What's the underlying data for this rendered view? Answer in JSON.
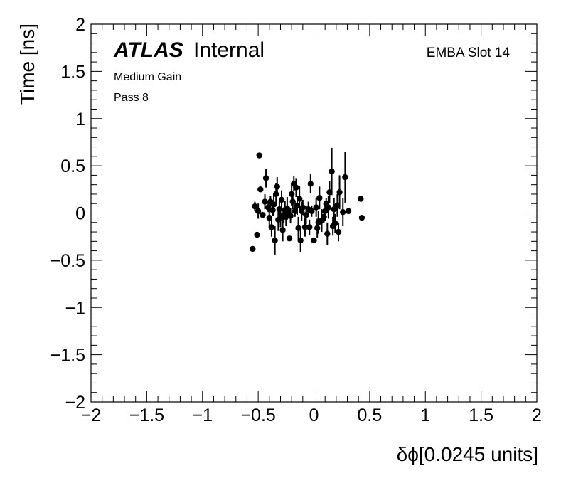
{
  "header": {
    "atlas_label": "ATLAS",
    "internal_label": "Internal",
    "region_label": "EMBA Slot 14",
    "gain_label": "Medium Gain",
    "pass_label": "Pass 8"
  },
  "chart_data": {
    "type": "scatter",
    "title": "",
    "xlabel": "δϕ[0.0245 units]",
    "ylabel": "Time [ns]",
    "xlim": [
      -2,
      2
    ],
    "ylim": [
      -2,
      2
    ],
    "x_ticks": [
      -2,
      -1.5,
      -1,
      -0.5,
      0,
      0.5,
      1,
      1.5,
      2
    ],
    "y_ticks": [
      -2,
      -1.5,
      -1,
      -0.5,
      0,
      0.5,
      1,
      1.5,
      2
    ],
    "x_tick_labels": [
      "−2",
      "−1.5",
      "−1",
      "−0.5",
      "0",
      "0.5",
      "1",
      "1.5",
      "2"
    ],
    "y_tick_labels": [
      "−2",
      "−1.5",
      "−1",
      "−0.5",
      "0",
      "0.5",
      "1",
      "1.5",
      "2"
    ],
    "grid": false,
    "marker_color": "#000000",
    "points": [
      {
        "x": -0.55,
        "y": -0.38,
        "err": 0.0
      },
      {
        "x": -0.53,
        "y": 0.07,
        "err": 0.05
      },
      {
        "x": -0.51,
        "y": -0.23,
        "err": 0.0
      },
      {
        "x": -0.5,
        "y": 0.02,
        "err": 0.08
      },
      {
        "x": -0.49,
        "y": 0.61,
        "err": 0.0
      },
      {
        "x": -0.48,
        "y": 0.25,
        "err": 0.0
      },
      {
        "x": -0.46,
        "y": -0.02,
        "err": 0.0
      },
      {
        "x": -0.44,
        "y": 0.12,
        "err": 0.08
      },
      {
        "x": -0.43,
        "y": 0.37,
        "err": 0.1
      },
      {
        "x": -0.41,
        "y": 0.06,
        "err": 0.05
      },
      {
        "x": -0.4,
        "y": -0.05,
        "err": 0.1
      },
      {
        "x": -0.39,
        "y": 0.12,
        "err": 0.06
      },
      {
        "x": -0.38,
        "y": -0.15,
        "err": 0.1
      },
      {
        "x": -0.37,
        "y": 0.03,
        "err": 0.06
      },
      {
        "x": -0.36,
        "y": 0.09,
        "err": 0.12
      },
      {
        "x": -0.35,
        "y": -0.29,
        "err": 0.15
      },
      {
        "x": -0.34,
        "y": 0.2,
        "err": 0.12
      },
      {
        "x": -0.33,
        "y": 0.28,
        "err": 0.1
      },
      {
        "x": -0.32,
        "y": -0.07,
        "err": 0.12
      },
      {
        "x": -0.31,
        "y": 0.04,
        "err": 0.08
      },
      {
        "x": -0.3,
        "y": -0.05,
        "err": 0.1
      },
      {
        "x": -0.29,
        "y": 0.14,
        "err": 0.1
      },
      {
        "x": -0.28,
        "y": -0.18,
        "err": 0.12
      },
      {
        "x": -0.27,
        "y": -0.02,
        "err": 0.08
      },
      {
        "x": -0.26,
        "y": 0.03,
        "err": 0.1
      },
      {
        "x": -0.25,
        "y": -0.04,
        "err": 0.1
      },
      {
        "x": -0.24,
        "y": 0.05,
        "err": 0.12
      },
      {
        "x": -0.23,
        "y": 0.01,
        "err": 0.05
      },
      {
        "x": -0.22,
        "y": -0.27,
        "err": 0.0
      },
      {
        "x": -0.21,
        "y": -0.03,
        "err": 0.08
      },
      {
        "x": -0.2,
        "y": 0.2,
        "err": 0.12
      },
      {
        "x": -0.19,
        "y": 0.12,
        "err": 0.08
      },
      {
        "x": -0.18,
        "y": 0.31,
        "err": 0.08
      },
      {
        "x": -0.17,
        "y": 0.02,
        "err": 0.06
      },
      {
        "x": -0.16,
        "y": 0.27,
        "err": 0.1
      },
      {
        "x": -0.15,
        "y": 0.08,
        "err": 0.1
      },
      {
        "x": -0.14,
        "y": -0.16,
        "err": 0.12
      },
      {
        "x": -0.13,
        "y": 0.15,
        "err": 0.14
      },
      {
        "x": -0.12,
        "y": -0.29,
        "err": 0.12
      },
      {
        "x": -0.11,
        "y": 0.02,
        "err": 0.1
      },
      {
        "x": -0.1,
        "y": 0.06,
        "err": 0.08
      },
      {
        "x": -0.08,
        "y": -0.15,
        "err": 0.1
      },
      {
        "x": -0.07,
        "y": -0.02,
        "err": 0.1
      },
      {
        "x": -0.05,
        "y": 0.04,
        "err": 0.08
      },
      {
        "x": -0.04,
        "y": -0.15,
        "err": 0.08
      },
      {
        "x": -0.03,
        "y": 0.31,
        "err": 0.1
      },
      {
        "x": -0.02,
        "y": 0.02,
        "err": 0.06
      },
      {
        "x": 0.0,
        "y": -0.29,
        "err": 0.0
      },
      {
        "x": 0.02,
        "y": 0.06,
        "err": 0.1
      },
      {
        "x": 0.03,
        "y": -0.16,
        "err": 0.1
      },
      {
        "x": 0.04,
        "y": -0.1,
        "err": 0.12
      },
      {
        "x": 0.05,
        "y": 0.16,
        "err": 0.12
      },
      {
        "x": 0.07,
        "y": -0.08,
        "err": 0.12
      },
      {
        "x": 0.09,
        "y": -0.04,
        "err": 0.06
      },
      {
        "x": 0.1,
        "y": 0.02,
        "err": 0.1
      },
      {
        "x": 0.11,
        "y": 0.1,
        "err": 0.06
      },
      {
        "x": 0.12,
        "y": -0.22,
        "err": 0.12
      },
      {
        "x": 0.13,
        "y": 0.06,
        "err": 0.12
      },
      {
        "x": 0.14,
        "y": 0.22,
        "err": 0.12
      },
      {
        "x": 0.16,
        "y": 0.44,
        "err": 0.25
      },
      {
        "x": 0.17,
        "y": -0.14,
        "err": 0.1
      },
      {
        "x": 0.18,
        "y": 0.04,
        "err": 0.12
      },
      {
        "x": 0.19,
        "y": -0.11,
        "err": 0.1
      },
      {
        "x": 0.21,
        "y": 0.08,
        "err": 0.12
      },
      {
        "x": 0.22,
        "y": -0.2,
        "err": 0.1
      },
      {
        "x": 0.23,
        "y": 0.22,
        "err": 0.18
      },
      {
        "x": 0.26,
        "y": 0.01,
        "err": 0.15
      },
      {
        "x": 0.28,
        "y": 0.38,
        "err": 0.27
      },
      {
        "x": 0.31,
        "y": 0.02,
        "err": 0.0
      },
      {
        "x": 0.42,
        "y": 0.15,
        "err": 0.0
      },
      {
        "x": 0.43,
        "y": -0.05,
        "err": 0.0
      }
    ]
  }
}
